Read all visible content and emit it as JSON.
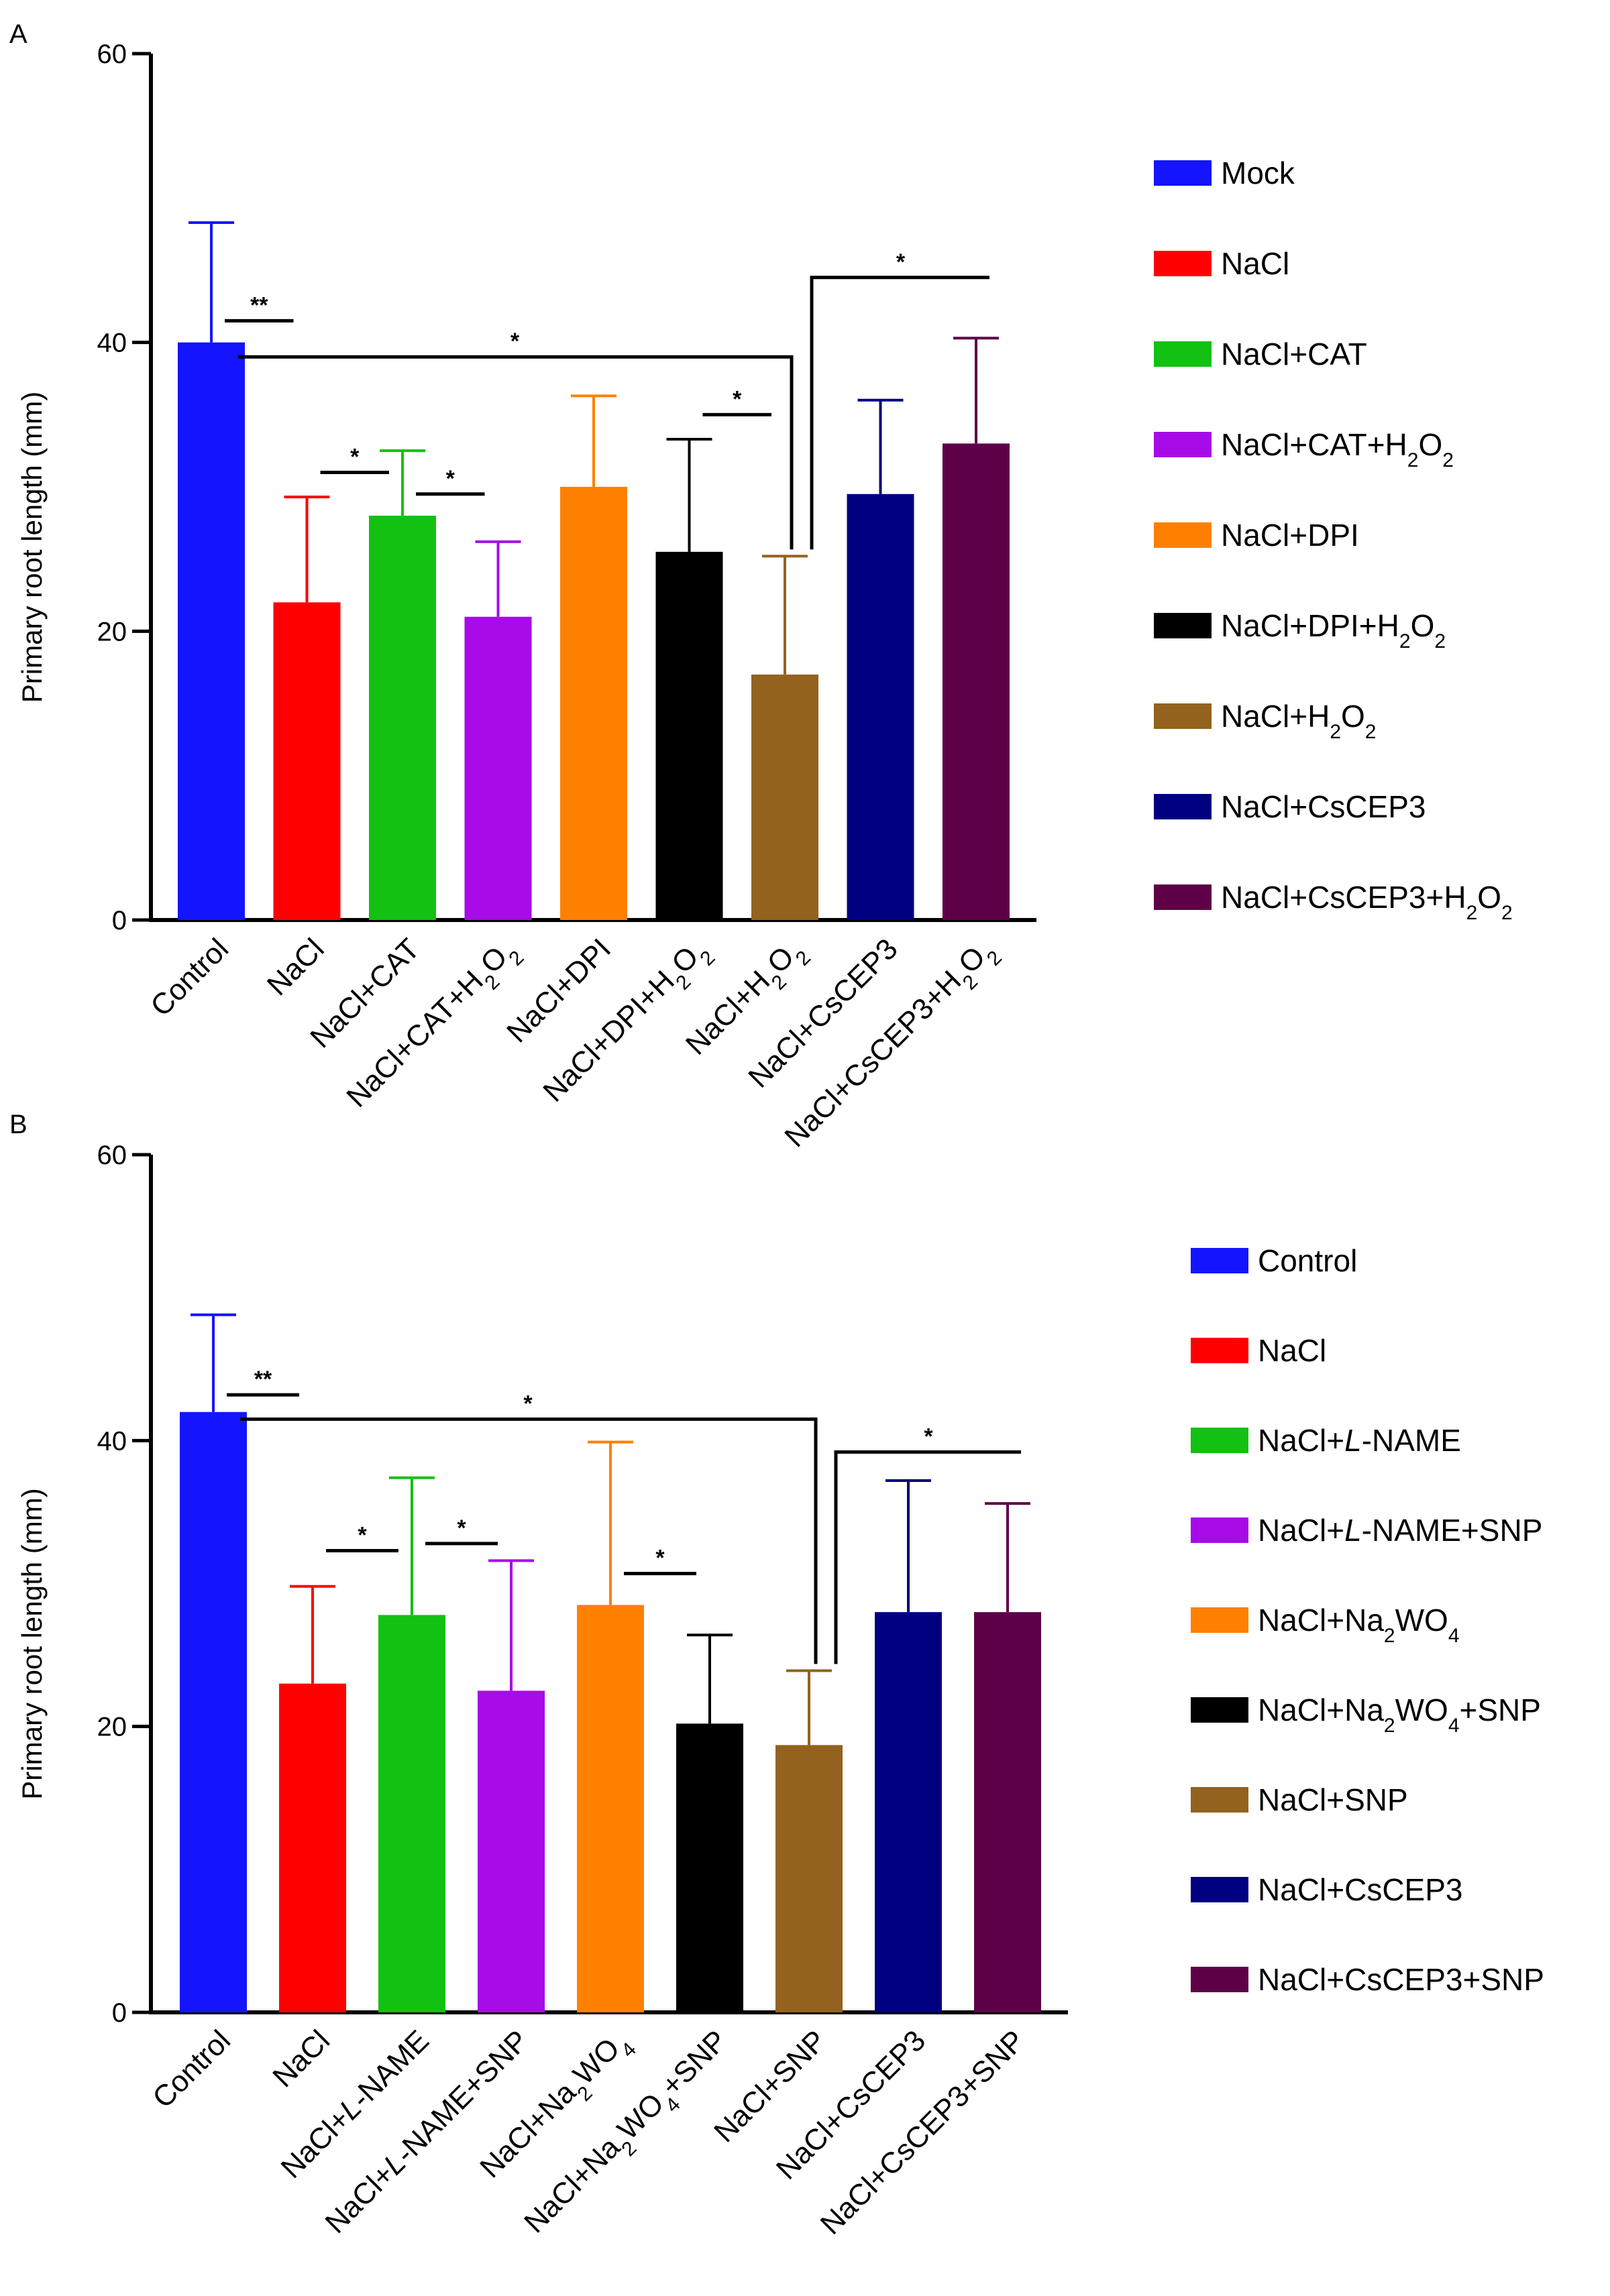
{
  "chart_data": [
    {
      "type": "bar",
      "panel_label": "A",
      "title": "",
      "xlabel": "",
      "ylabel": "Primary root length (mm)",
      "ylim": [
        0,
        60
      ],
      "yticks": [
        "0",
        "20",
        "40",
        "60"
      ],
      "categories": [
        {
          "text": "Control",
          "parts": [
            {
              "t": "Control"
            }
          ]
        },
        {
          "text": "NaCl",
          "parts": [
            {
              "t": "NaCl"
            }
          ]
        },
        {
          "text": "NaCl+CAT",
          "parts": [
            {
              "t": "NaCl+CAT"
            }
          ]
        },
        {
          "text": "NaCl+CAT+H2O2",
          "parts": [
            {
              "t": "NaCl+CAT+H"
            },
            {
              "t": "2",
              "sub": true
            },
            {
              "t": "O"
            },
            {
              "t": "2",
              "sub": true
            }
          ]
        },
        {
          "text": "NaCl+DPI",
          "parts": [
            {
              "t": "NaCl+DPI"
            }
          ]
        },
        {
          "text": "NaCl+DPI+H2O2",
          "parts": [
            {
              "t": "NaCl+DPI+H"
            },
            {
              "t": "2",
              "sub": true
            },
            {
              "t": "O"
            },
            {
              "t": "2",
              "sub": true
            }
          ]
        },
        {
          "text": "NaCl+H2O2",
          "parts": [
            {
              "t": "NaCl+H"
            },
            {
              "t": "2",
              "sub": true
            },
            {
              "t": "O"
            },
            {
              "t": "2",
              "sub": true
            }
          ]
        },
        {
          "text": "NaCl+CsCEP3",
          "parts": [
            {
              "t": "NaCl+CsCEP3"
            }
          ]
        },
        {
          "text": "NaCl+CsCEP3+H2O2",
          "parts": [
            {
              "t": "NaCl+CsCEP3+H"
            },
            {
              "t": "2",
              "sub": true
            },
            {
              "t": "O"
            },
            {
              "t": "2",
              "sub": true
            }
          ]
        }
      ],
      "values": [
        40,
        22,
        28,
        21,
        30,
        25.5,
        17,
        29.5,
        33
      ],
      "errors": [
        8.3,
        7.3,
        4.5,
        5.2,
        6.3,
        7.8,
        8.2,
        6.5,
        7.3
      ],
      "colors": [
        "#1414ff",
        "#ff0000",
        "#12c112",
        "#a60be8",
        "#ff8000",
        "#000000",
        "#93621e",
        "#000080",
        "#5e0048"
      ],
      "legend": [
        {
          "text": "Mock",
          "parts": [
            {
              "t": "Mock"
            }
          ]
        },
        {
          "text": "NaCl",
          "parts": [
            {
              "t": "NaCl"
            }
          ]
        },
        {
          "text": "NaCl+CAT",
          "parts": [
            {
              "t": "NaCl+CAT"
            }
          ]
        },
        {
          "text": "NaCl+CAT+H2O2",
          "parts": [
            {
              "t": "NaCl+CAT+H"
            },
            {
              "t": "2",
              "sub": true
            },
            {
              "t": "O"
            },
            {
              "t": "2",
              "sub": true
            }
          ]
        },
        {
          "text": "NaCl+DPI",
          "parts": [
            {
              "t": "NaCl+DPI"
            }
          ]
        },
        {
          "text": "NaCl+DPI+H2O2",
          "parts": [
            {
              "t": "NaCl+DPI+H"
            },
            {
              "t": "2",
              "sub": true
            },
            {
              "t": "O"
            },
            {
              "t": "2",
              "sub": true
            }
          ]
        },
        {
          "text": "NaCl+H2O2",
          "parts": [
            {
              "t": "NaCl+H"
            },
            {
              "t": "2",
              "sub": true
            },
            {
              "t": "O"
            },
            {
              "t": "2",
              "sub": true
            }
          ]
        },
        {
          "text": "NaCl+CsCEP3",
          "parts": [
            {
              "t": "NaCl+CsCEP3"
            }
          ]
        },
        {
          "text": "NaCl+CsCEP3+H2O2",
          "parts": [
            {
              "t": "NaCl+CsCEP3+H"
            },
            {
              "t": "2",
              "sub": true
            },
            {
              "t": "O"
            },
            {
              "t": "2",
              "sub": true
            }
          ]
        }
      ],
      "legend_position": "right",
      "significance": [
        {
          "type": "line",
          "from": 0,
          "to": 1,
          "y": 41.5,
          "label": "**"
        },
        {
          "type": "line",
          "from": 1,
          "to": 2,
          "y": 31,
          "label": "*"
        },
        {
          "type": "line",
          "from": 2,
          "to": 3,
          "y": 29.5,
          "label": "*"
        },
        {
          "type": "line",
          "from": 5,
          "to": 6,
          "y": 35,
          "label": "*"
        },
        {
          "type": "bracket",
          "from": 0,
          "to": 6,
          "y": 39,
          "label": "*"
        },
        {
          "type": "bracket",
          "from": 6,
          "to": 8,
          "y": 44.5,
          "label": "*"
        }
      ]
    },
    {
      "type": "bar",
      "panel_label": "B",
      "title": "",
      "xlabel": "",
      "ylabel": "Primary root length (mm)",
      "ylim": [
        0,
        60
      ],
      "yticks": [
        "0",
        "20",
        "40",
        "60"
      ],
      "categories": [
        {
          "text": "Control",
          "parts": [
            {
              "t": "Control"
            }
          ]
        },
        {
          "text": "NaCl",
          "parts": [
            {
              "t": "NaCl"
            }
          ]
        },
        {
          "text": "NaCl+L-NAME",
          "parts": [
            {
              "t": "NaCl+"
            },
            {
              "t": "L",
              "it": true
            },
            {
              "t": "-NAME"
            }
          ]
        },
        {
          "text": "NaCl+L-NAME+SNP",
          "parts": [
            {
              "t": "NaCl+"
            },
            {
              "t": "L",
              "it": true
            },
            {
              "t": "-NAME+SNP"
            }
          ]
        },
        {
          "text": "NaCl+Na2WO4",
          "parts": [
            {
              "t": "NaCl+Na"
            },
            {
              "t": "2",
              "sub": true
            },
            {
              "t": "WO"
            },
            {
              "t": "4",
              "sub": true
            }
          ]
        },
        {
          "text": "NaCl+Na2WO4+SNP",
          "parts": [
            {
              "t": "NaCl+Na"
            },
            {
              "t": "2",
              "sub": true
            },
            {
              "t": "WO"
            },
            {
              "t": "4",
              "sub": true
            },
            {
              "t": "+SNP"
            }
          ]
        },
        {
          "text": "NaCl+SNP",
          "parts": [
            {
              "t": "NaCl+SNP"
            }
          ]
        },
        {
          "text": "NaCl+CsCEP3",
          "parts": [
            {
              "t": "NaCl+CsCEP3"
            }
          ]
        },
        {
          "text": "NaCl+CsCEP3+SNP",
          "parts": [
            {
              "t": "NaCl+CsCEP3+SNP"
            }
          ]
        }
      ],
      "values": [
        42,
        23,
        27.8,
        22.5,
        28.5,
        20.2,
        18.7,
        28,
        28
      ],
      "errors": [
        6.8,
        6.8,
        9.6,
        9.1,
        11.4,
        6.2,
        5.2,
        9.2,
        7.6
      ],
      "colors": [
        "#1414ff",
        "#ff0000",
        "#12c112",
        "#a60be8",
        "#ff8000",
        "#000000",
        "#93621e",
        "#000080",
        "#5e0048"
      ],
      "legend": [
        {
          "text": "Control",
          "parts": [
            {
              "t": "Control"
            }
          ]
        },
        {
          "text": "NaCl",
          "parts": [
            {
              "t": "NaCl"
            }
          ]
        },
        {
          "text": "NaCl+L-NAME",
          "parts": [
            {
              "t": "NaCl+"
            },
            {
              "t": "L",
              "it": true
            },
            {
              "t": "-NAME"
            }
          ]
        },
        {
          "text": "NaCl+L-NAME+SNP",
          "parts": [
            {
              "t": "NaCl+"
            },
            {
              "t": "L",
              "it": true
            },
            {
              "t": "-NAME+SNP"
            }
          ]
        },
        {
          "text": "NaCl+Na2WO4",
          "parts": [
            {
              "t": "NaCl+Na"
            },
            {
              "t": "2",
              "sub": true
            },
            {
              "t": "WO"
            },
            {
              "t": "4",
              "sub": true
            }
          ]
        },
        {
          "text": "NaCl+Na2WO4+SNP",
          "parts": [
            {
              "t": "NaCl+Na"
            },
            {
              "t": "2",
              "sub": true
            },
            {
              "t": "WO"
            },
            {
              "t": "4",
              "sub": true
            },
            {
              "t": "+SNP"
            }
          ]
        },
        {
          "text": "NaCl+SNP",
          "parts": [
            {
              "t": "NaCl+SNP"
            }
          ]
        },
        {
          "text": "NaCl+CsCEP3",
          "parts": [
            {
              "t": "NaCl+CsCEP3"
            }
          ]
        },
        {
          "text": "NaCl+CsCEP3+SNP",
          "parts": [
            {
              "t": "NaCl+CsCEP3+SNP"
            }
          ]
        }
      ],
      "legend_position": "right",
      "significance": [
        {
          "type": "line",
          "from": 0,
          "to": 1,
          "y": 43.2,
          "label": "**"
        },
        {
          "type": "line",
          "from": 1,
          "to": 2,
          "y": 32.3,
          "label": "*"
        },
        {
          "type": "line",
          "from": 2,
          "to": 3,
          "y": 32.8,
          "label": "*"
        },
        {
          "type": "line",
          "from": 4,
          "to": 5,
          "y": 30.7,
          "label": "*"
        },
        {
          "type": "bracket",
          "from": 0,
          "to": 6,
          "y": 41.5,
          "label": "*"
        },
        {
          "type": "bracket",
          "from": 6,
          "to": 8,
          "y": 39.2,
          "label": "*"
        }
      ]
    }
  ]
}
